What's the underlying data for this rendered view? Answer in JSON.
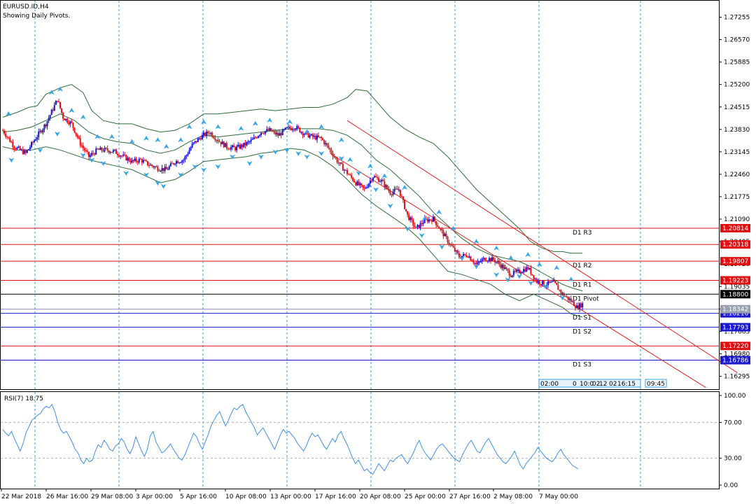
{
  "header": {
    "symbol": "EURUSD.ID,H4",
    "subtitle": "Showing Daily Pivots."
  },
  "rsi_panel": {
    "label": "RSI(7) 18.75"
  },
  "time_box_labels": [
    "02:00",
    "0",
    "10:0",
    "02",
    "12",
    "02",
    "16:15",
    "09:45"
  ],
  "colors": {
    "bull": "#1515d4",
    "bear": "#e01010",
    "band": "#2e6b3a",
    "channel": "#e02020",
    "rsi": "#3f8fe6",
    "arrow": "#36a6e8",
    "vgrid": "#2aa0e8",
    "resistance": "#e01010",
    "support": "#1a1acc",
    "pivot": "#000000"
  },
  "chart_data": [
    {
      "type": "candlestick",
      "title": "EURUSD.ID,H4",
      "ylim": [
        1.1605,
        1.2765
      ],
      "y_ticks": [
        "1.27255",
        "1.26570",
        "1.25885",
        "1.25200",
        "1.24515",
        "1.23830",
        "1.23145",
        "1.22460",
        "1.21775",
        "1.21090",
        "1.20405",
        "1.19720",
        "1.19035",
        "1.18350",
        "1.17665",
        "1.16980",
        "1.16295"
      ],
      "x_ticks": [
        "22 Mar 2018",
        "26 Mar 16:00",
        "29 Mar 08:00",
        "3 Apr 00:00",
        "5 Apr 16:00",
        "10 Apr 08:00",
        "13 Apr 00:00",
        "17 Apr 16:00",
        "20 Apr 08:00",
        "25 Apr 00:00",
        "27 Apr 16:00",
        "2 May 08:00",
        "7 May 00:00"
      ],
      "close_path": [
        [
          0,
          1.238
        ],
        [
          8,
          1.233
        ],
        [
          16,
          1.231
        ],
        [
          22,
          1.235
        ],
        [
          30,
          1.24
        ],
        [
          36,
          1.2455
        ],
        [
          38,
          1.2475
        ],
        [
          42,
          1.242
        ],
        [
          48,
          1.24
        ],
        [
          54,
          1.234
        ],
        [
          60,
          1.23
        ],
        [
          66,
          1.232
        ],
        [
          72,
          1.232
        ],
        [
          78,
          1.2315
        ],
        [
          84,
          1.23
        ],
        [
          90,
          1.2285
        ],
        [
          96,
          1.229
        ],
        [
          102,
          1.2275
        ],
        [
          108,
          1.2265
        ],
        [
          114,
          1.226
        ],
        [
          120,
          1.2285
        ],
        [
          126,
          1.229
        ],
        [
          132,
          1.2335
        ],
        [
          138,
          1.236
        ],
        [
          144,
          1.2375
        ],
        [
          150,
          1.235
        ],
        [
          156,
          1.233
        ],
        [
          162,
          1.2325
        ],
        [
          168,
          1.2335
        ],
        [
          174,
          1.235
        ],
        [
          180,
          1.2375
        ],
        [
          186,
          1.238
        ],
        [
          192,
          1.2365
        ],
        [
          198,
          1.2385
        ],
        [
          204,
          1.239
        ],
        [
          210,
          1.237
        ],
        [
          216,
          1.236
        ],
        [
          222,
          1.2355
        ],
        [
          228,
          1.232
        ],
        [
          234,
          1.228
        ],
        [
          240,
          1.225
        ],
        [
          246,
          1.222
        ],
        [
          252,
          1.22
        ],
        [
          258,
          1.224
        ],
        [
          264,
          1.2225
        ],
        [
          270,
          1.219
        ],
        [
          276,
          1.22
        ],
        [
          282,
          1.212
        ],
        [
          288,
          1.208
        ],
        [
          294,
          1.2105
        ],
        [
          300,
          1.211
        ],
        [
          306,
          1.207
        ],
        [
          312,
          1.203
        ],
        [
          318,
          1.1995
        ],
        [
          324,
          1.2
        ],
        [
          330,
          1.197
        ],
        [
          336,
          1.199
        ],
        [
          342,
          1.1985
        ],
        [
          348,
          1.1965
        ],
        [
          354,
          1.194
        ],
        [
          360,
          1.195
        ],
        [
          366,
          1.196
        ],
        [
          372,
          1.192
        ],
        [
          378,
          1.191
        ],
        [
          384,
          1.1915
        ],
        [
          390,
          1.188
        ],
        [
          396,
          1.186
        ],
        [
          400,
          1.184
        ],
        [
          404,
          1.185
        ]
      ],
      "bollinger_upper": [
        [
          0,
          1.242
        ],
        [
          10,
          1.2435
        ],
        [
          18,
          1.245
        ],
        [
          24,
          1.2455
        ],
        [
          30,
          1.249
        ],
        [
          40,
          1.251
        ],
        [
          48,
          1.252
        ],
        [
          56,
          1.2495
        ],
        [
          62,
          1.244
        ],
        [
          70,
          1.241
        ],
        [
          80,
          1.24
        ],
        [
          90,
          1.24
        ],
        [
          100,
          1.2385
        ],
        [
          110,
          1.2375
        ],
        [
          120,
          1.238
        ],
        [
          130,
          1.24
        ],
        [
          140,
          1.243
        ],
        [
          150,
          1.243
        ],
        [
          160,
          1.2435
        ],
        [
          170,
          1.244
        ],
        [
          180,
          1.2445
        ],
        [
          190,
          1.244
        ],
        [
          200,
          1.2445
        ],
        [
          210,
          1.245
        ],
        [
          220,
          1.245
        ],
        [
          230,
          1.246
        ],
        [
          240,
          1.248
        ],
        [
          246,
          1.2505
        ],
        [
          254,
          1.25
        ],
        [
          262,
          1.246
        ],
        [
          270,
          1.242
        ],
        [
          280,
          1.2385
        ],
        [
          290,
          1.236
        ],
        [
          300,
          1.234
        ],
        [
          310,
          1.23
        ],
        [
          320,
          1.225
        ],
        [
          330,
          1.22
        ],
        [
          340,
          1.216
        ],
        [
          350,
          1.212
        ],
        [
          360,
          1.208
        ],
        [
          368,
          1.204
        ],
        [
          376,
          1.202
        ],
        [
          384,
          1.201
        ],
        [
          390,
          1.201
        ],
        [
          396,
          1.2005
        ],
        [
          404,
          1.2005
        ]
      ],
      "bollinger_middle": [
        [
          0,
          1.2375
        ],
        [
          10,
          1.238
        ],
        [
          20,
          1.239
        ],
        [
          30,
          1.241
        ],
        [
          40,
          1.243
        ],
        [
          50,
          1.241
        ],
        [
          60,
          1.2375
        ],
        [
          70,
          1.2355
        ],
        [
          80,
          1.2345
        ],
        [
          90,
          1.234
        ],
        [
          100,
          1.232
        ],
        [
          110,
          1.231
        ],
        [
          120,
          1.232
        ],
        [
          130,
          1.2345
        ],
        [
          140,
          1.2365
        ],
        [
          150,
          1.236
        ],
        [
          160,
          1.2365
        ],
        [
          170,
          1.237
        ],
        [
          180,
          1.2375
        ],
        [
          190,
          1.238
        ],
        [
          200,
          1.2385
        ],
        [
          210,
          1.2385
        ],
        [
          220,
          1.2385
        ],
        [
          230,
          1.238
        ],
        [
          240,
          1.2365
        ],
        [
          250,
          1.2335
        ],
        [
          260,
          1.229
        ],
        [
          270,
          1.226
        ],
        [
          280,
          1.222
        ],
        [
          290,
          1.218
        ],
        [
          300,
          1.213
        ],
        [
          310,
          1.209
        ],
        [
          320,
          1.205
        ],
        [
          330,
          1.202
        ],
        [
          340,
          1.2
        ],
        [
          350,
          1.199
        ],
        [
          360,
          1.198
        ],
        [
          370,
          1.196
        ],
        [
          380,
          1.1935
        ],
        [
          390,
          1.191
        ],
        [
          396,
          1.19
        ],
        [
          404,
          1.189
        ]
      ],
      "bollinger_lower": [
        [
          0,
          1.233
        ],
        [
          10,
          1.232
        ],
        [
          20,
          1.232
        ],
        [
          30,
          1.233
        ],
        [
          40,
          1.232
        ],
        [
          50,
          1.2305
        ],
        [
          60,
          1.229
        ],
        [
          70,
          1.228
        ],
        [
          80,
          1.227
        ],
        [
          90,
          1.226
        ],
        [
          100,
          1.224
        ],
        [
          110,
          1.222
        ],
        [
          120,
          1.223
        ],
        [
          130,
          1.2255
        ],
        [
          140,
          1.2285
        ],
        [
          150,
          1.229
        ],
        [
          160,
          1.2295
        ],
        [
          170,
          1.23
        ],
        [
          180,
          1.231
        ],
        [
          190,
          1.2315
        ],
        [
          200,
          1.2325
        ],
        [
          210,
          1.232
        ],
        [
          220,
          1.23
        ],
        [
          230,
          1.227
        ],
        [
          240,
          1.223
        ],
        [
          250,
          1.2185
        ],
        [
          260,
          1.215
        ],
        [
          270,
          1.212
        ],
        [
          280,
          1.209
        ],
        [
          290,
          1.205
        ],
        [
          300,
          1.2
        ],
        [
          310,
          1.195
        ],
        [
          320,
          1.194
        ],
        [
          330,
          1.1925
        ],
        [
          340,
          1.191
        ],
        [
          350,
          1.188
        ],
        [
          360,
          1.186
        ],
        [
          370,
          1.188
        ],
        [
          380,
          1.186
        ],
        [
          390,
          1.184
        ],
        [
          396,
          1.182
        ],
        [
          404,
          1.181
        ]
      ],
      "channel_upper": [
        [
          240,
          1.241
        ],
        [
          512,
          1.164
        ]
      ],
      "channel_lower": [
        [
          228,
          1.231
        ],
        [
          490,
          1.1595
        ]
      ],
      "fractals_up": [
        [
          4,
          1.243
        ],
        [
          34,
          1.2495
        ],
        [
          40,
          1.2505
        ],
        [
          48,
          1.244
        ],
        [
          56,
          1.242
        ],
        [
          66,
          1.236
        ],
        [
          76,
          1.236
        ],
        [
          90,
          1.2345
        ],
        [
          100,
          1.2355
        ],
        [
          108,
          1.235
        ],
        [
          114,
          1.233
        ],
        [
          124,
          1.235
        ],
        [
          130,
          1.239
        ],
        [
          140,
          1.2405
        ],
        [
          150,
          1.239
        ],
        [
          166,
          1.2385
        ],
        [
          176,
          1.24
        ],
        [
          186,
          1.241
        ],
        [
          200,
          1.2405
        ],
        [
          212,
          1.2375
        ],
        [
          222,
          1.239
        ],
        [
          236,
          1.235
        ],
        [
          242,
          1.229
        ],
        [
          256,
          1.227
        ],
        [
          266,
          1.224
        ],
        [
          280,
          1.2205
        ],
        [
          294,
          1.211
        ],
        [
          304,
          1.213
        ],
        [
          314,
          1.208
        ],
        [
          330,
          1.204
        ],
        [
          344,
          1.202
        ],
        [
          354,
          1.199
        ],
        [
          366,
          1.2
        ],
        [
          374,
          1.197
        ],
        [
          386,
          1.196
        ],
        [
          396,
          1.1925
        ]
      ],
      "fractals_down": [
        [
          6,
          1.229
        ],
        [
          26,
          1.232
        ],
        [
          38,
          1.237
        ],
        [
          56,
          1.2305
        ],
        [
          62,
          1.229
        ],
        [
          70,
          1.228
        ],
        [
          86,
          1.225
        ],
        [
          100,
          1.2245
        ],
        [
          108,
          1.222
        ],
        [
          112,
          1.221
        ],
        [
          124,
          1.2245
        ],
        [
          134,
          1.227
        ],
        [
          140,
          1.226
        ],
        [
          150,
          1.227
        ],
        [
          160,
          1.23
        ],
        [
          172,
          1.228
        ],
        [
          180,
          1.23
        ],
        [
          190,
          1.2315
        ],
        [
          198,
          1.232
        ],
        [
          206,
          1.231
        ],
        [
          212,
          1.23
        ],
        [
          222,
          1.231
        ],
        [
          236,
          1.2295
        ],
        [
          248,
          1.225
        ],
        [
          260,
          1.22
        ],
        [
          270,
          1.215
        ],
        [
          282,
          1.208
        ],
        [
          292,
          1.206
        ],
        [
          306,
          1.2025
        ],
        [
          320,
          1.199
        ],
        [
          330,
          1.1965
        ],
        [
          344,
          1.194
        ],
        [
          352,
          1.1925
        ],
        [
          360,
          1.1935
        ],
        [
          368,
          1.1915
        ],
        [
          378,
          1.1905
        ],
        [
          390,
          1.187
        ]
      ],
      "pivot_levels": [
        {
          "name": "D1 R3",
          "value": 1.20814,
          "label": "1.20814",
          "kind": "resistance"
        },
        {
          "name": "",
          "value": 1.20318,
          "label": "1.20318",
          "kind": "resistance"
        },
        {
          "name": "D1 R2",
          "value": 1.19807,
          "label": "1.19807",
          "kind": "resistance"
        },
        {
          "name": "D1 R1",
          "value": 1.19223,
          "label": "1.19223",
          "kind": "resistance"
        },
        {
          "name": "D1 Pivot",
          "value": 1.188,
          "label": "1.18800",
          "kind": "pivot"
        },
        {
          "name": "D1 S1",
          "value": 1.18216,
          "label": "1.18216",
          "kind": "support"
        },
        {
          "name": "D1 S2",
          "value": 1.17793,
          "label": "1.17793",
          "kind": "support"
        },
        {
          "name": "",
          "value": 1.1722,
          "label": "1.17220",
          "kind": "resistance"
        },
        {
          "name": "D1 S3",
          "value": 1.16786,
          "label": "1.16786",
          "kind": "support"
        }
      ],
      "current_price": {
        "value": 1.18342,
        "label": "1.18342"
      }
    },
    {
      "type": "line",
      "title": "RSI(7) 18.75",
      "ylim": [
        0,
        100
      ],
      "y_ticks": [
        "100.00",
        "70.00",
        "30.00",
        "0.00"
      ],
      "levels": [
        70,
        30
      ],
      "y": [
        62,
        58,
        55,
        60,
        52,
        45,
        38,
        46,
        58,
        65,
        72,
        75,
        78,
        80,
        85,
        88,
        86,
        90,
        82,
        70,
        62,
        58,
        60,
        54,
        48,
        40,
        36,
        28,
        24,
        30,
        26,
        28,
        38,
        45,
        42,
        50,
        46,
        40,
        38,
        44,
        46,
        52,
        48,
        40,
        35,
        42,
        54,
        46,
        38,
        32,
        40,
        55,
        60,
        48,
        42,
        36,
        38,
        42,
        46,
        40,
        35,
        30,
        28,
        34,
        42,
        50,
        58,
        54,
        46,
        40,
        48,
        56,
        66,
        72,
        78,
        82,
        74,
        66,
        72,
        80,
        86,
        84,
        88,
        90,
        82,
        76,
        70,
        64,
        56,
        60,
        64,
        58,
        52,
        46,
        40,
        48,
        56,
        62,
        58,
        60,
        56,
        52,
        46,
        42,
        38,
        44,
        52,
        58,
        54,
        56,
        50,
        44,
        40,
        46,
        52,
        48,
        56,
        60,
        52,
        46,
        38,
        30,
        24,
        28,
        22,
        16,
        18,
        14,
        12,
        18,
        24,
        20,
        16,
        22,
        28,
        26,
        30,
        32,
        34,
        28,
        24,
        30,
        36,
        44,
        50,
        42,
        36,
        32,
        28,
        34,
        40,
        44,
        46,
        42,
        38,
        34,
        30,
        28,
        26,
        34,
        40,
        46,
        50,
        44,
        38,
        36,
        42,
        48,
        52,
        46,
        40,
        34,
        30,
        26,
        24,
        28,
        32,
        38,
        30,
        22,
        18,
        24,
        28,
        32,
        36,
        42,
        38,
        34,
        30,
        28,
        26,
        30,
        36,
        40,
        34,
        30,
        26,
        22,
        20,
        18
      ]
    }
  ]
}
